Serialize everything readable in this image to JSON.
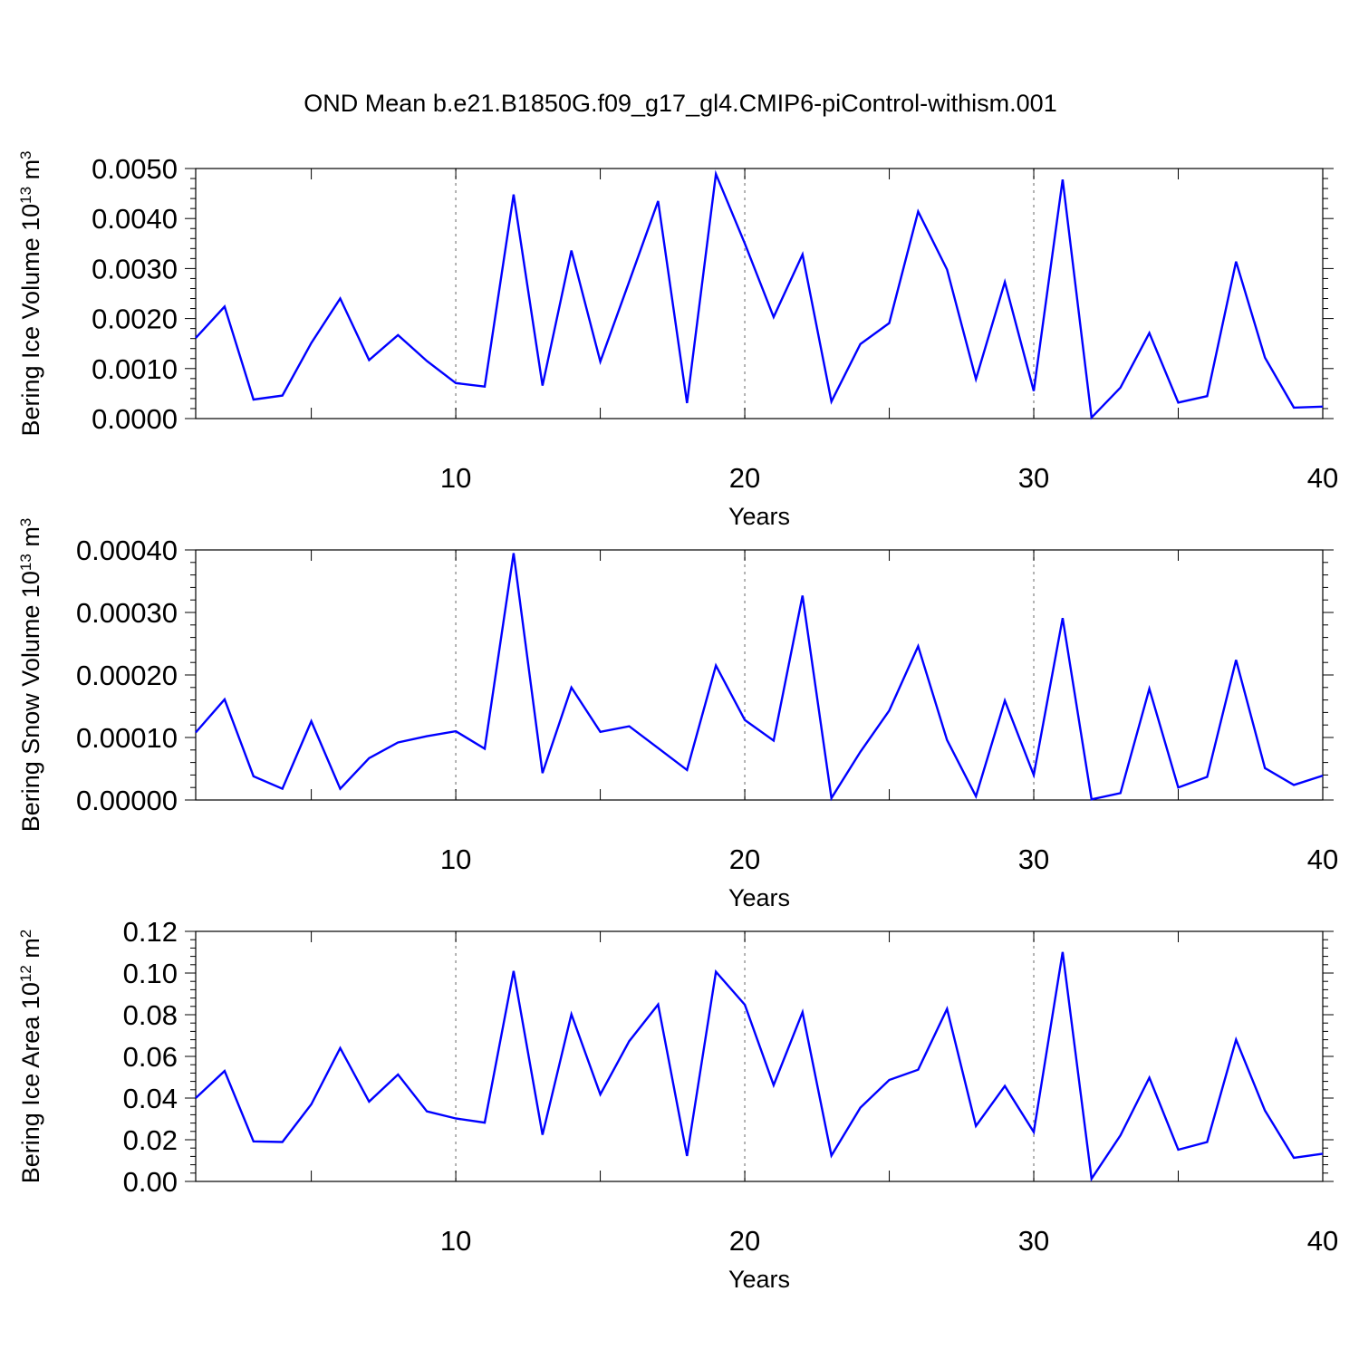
{
  "title": "OND Mean b.e21.B1850G.f09_g17_gl4.CMIP6-piControl-withism.001",
  "colors": {
    "series": "#0000ff",
    "grid": "#999999",
    "axis": "#000000"
  },
  "chart_data": [
    {
      "type": "line",
      "title": "OND Mean b.e21.B1850G.f09_g17_gl4.CMIP6-piControl-withism.001",
      "xlabel": "Years",
      "ylabel": {
        "base": "Bering Ice Volume 10",
        "exp": "13",
        "unit": " m",
        "unit_exp": "3"
      },
      "xlim": [
        1,
        40
      ],
      "ylim": [
        0,
        0.005
      ],
      "xticks": [
        10,
        20,
        30,
        40
      ],
      "yticks": [
        "0.0000",
        "0.0010",
        "0.0020",
        "0.0030",
        "0.0040",
        "0.0050"
      ],
      "ytick_values": [
        0,
        0.001,
        0.002,
        0.003,
        0.004,
        0.005
      ],
      "grid_x": [
        10,
        20,
        30
      ],
      "x": [
        1,
        2,
        3,
        4,
        5,
        6,
        7,
        8,
        9,
        10,
        11,
        12,
        13,
        14,
        15,
        16,
        17,
        18,
        19,
        20,
        21,
        22,
        23,
        24,
        25,
        26,
        27,
        28,
        29,
        30,
        31,
        32,
        33,
        34,
        35,
        36,
        37,
        38,
        39,
        40
      ],
      "values": [
        0.00161,
        0.00224,
        0.00038,
        0.00046,
        0.00151,
        0.0024,
        0.00117,
        0.00167,
        0.00115,
        0.00071,
        0.00064,
        0.00448,
        0.00066,
        0.00336,
        0.00114,
        0.00274,
        0.00435,
        0.00031,
        0.00489,
        0.0035,
        0.00203,
        0.00328,
        0.00034,
        0.00149,
        0.00191,
        0.00414,
        0.00298,
        0.00079,
        0.00273,
        0.00055,
        0.00478,
        2e-05,
        0.00062,
        0.00171,
        0.00032,
        0.00045,
        0.00314,
        0.00122,
        0.00022,
        0.00024
      ]
    },
    {
      "type": "line",
      "xlabel": "Years",
      "ylabel": {
        "base": "Bering Snow Volume 10",
        "exp": "13",
        "unit": " m",
        "unit_exp": "3"
      },
      "xlim": [
        1,
        40
      ],
      "ylim": [
        0,
        0.0004
      ],
      "xticks": [
        10,
        20,
        30,
        40
      ],
      "yticks": [
        "0.00000",
        "0.00010",
        "0.00020",
        "0.00030",
        "0.00040"
      ],
      "ytick_values": [
        0,
        0.0001,
        0.0002,
        0.0003,
        0.0004
      ],
      "grid_x": [
        10,
        20,
        30
      ],
      "x": [
        1,
        2,
        3,
        4,
        5,
        6,
        7,
        8,
        9,
        10,
        11,
        12,
        13,
        14,
        15,
        16,
        17,
        18,
        19,
        20,
        21,
        22,
        23,
        24,
        25,
        26,
        27,
        28,
        29,
        30,
        31,
        32,
        33,
        34,
        35,
        36,
        37,
        38,
        39,
        40
      ],
      "values": [
        0.000108,
        0.000161,
        3.8e-05,
        1.8e-05,
        0.000126,
        1.8e-05,
        6.7e-05,
        9.2e-05,
        0.000102,
        0.00011,
        8.2e-05,
        0.000395,
        4.3e-05,
        0.00018,
        0.000109,
        0.000118,
        8.3e-05,
        4.8e-05,
        0.000215,
        0.000128,
        9.5e-05,
        0.000327,
        3e-06,
        7.7e-05,
        0.000143,
        0.000246,
        9.6e-05,
        6e-06,
        0.000159,
        4e-05,
        0.000291,
        1e-06,
        1.1e-05,
        0.000178,
        2e-05,
        3.7e-05,
        0.000224,
        5.1e-05,
        2.4e-05,
        3.9e-05
      ]
    },
    {
      "type": "line",
      "xlabel": "Years",
      "ylabel": {
        "base": "Bering Ice Area 10",
        "exp": "12",
        "unit": " m",
        "unit_exp": "2"
      },
      "xlim": [
        1,
        40
      ],
      "ylim": [
        0,
        0.12
      ],
      "xticks": [
        10,
        20,
        30,
        40
      ],
      "yticks": [
        "0.00",
        "0.02",
        "0.04",
        "0.06",
        "0.08",
        "0.10",
        "0.12"
      ],
      "ytick_values": [
        0,
        0.02,
        0.04,
        0.06,
        0.08,
        0.1,
        0.12
      ],
      "grid_x": [
        10,
        20,
        30
      ],
      "x": [
        1,
        2,
        3,
        4,
        5,
        6,
        7,
        8,
        9,
        10,
        11,
        12,
        13,
        14,
        15,
        16,
        17,
        18,
        19,
        20,
        21,
        22,
        23,
        24,
        25,
        26,
        27,
        28,
        29,
        30,
        31,
        32,
        33,
        34,
        35,
        36,
        37,
        38,
        39,
        40
      ],
      "values": [
        0.04,
        0.053,
        0.0192,
        0.0189,
        0.037,
        0.064,
        0.0383,
        0.0513,
        0.0336,
        0.0302,
        0.0282,
        0.101,
        0.0224,
        0.0802,
        0.0418,
        0.0673,
        0.0849,
        0.0122,
        0.1006,
        0.0848,
        0.0462,
        0.0812,
        0.0124,
        0.0354,
        0.0487,
        0.0536,
        0.0828,
        0.0266,
        0.0458,
        0.0237,
        0.1101,
        0.0013,
        0.0221,
        0.0498,
        0.0152,
        0.0189,
        0.068,
        0.034,
        0.0113,
        0.0133
      ]
    }
  ]
}
